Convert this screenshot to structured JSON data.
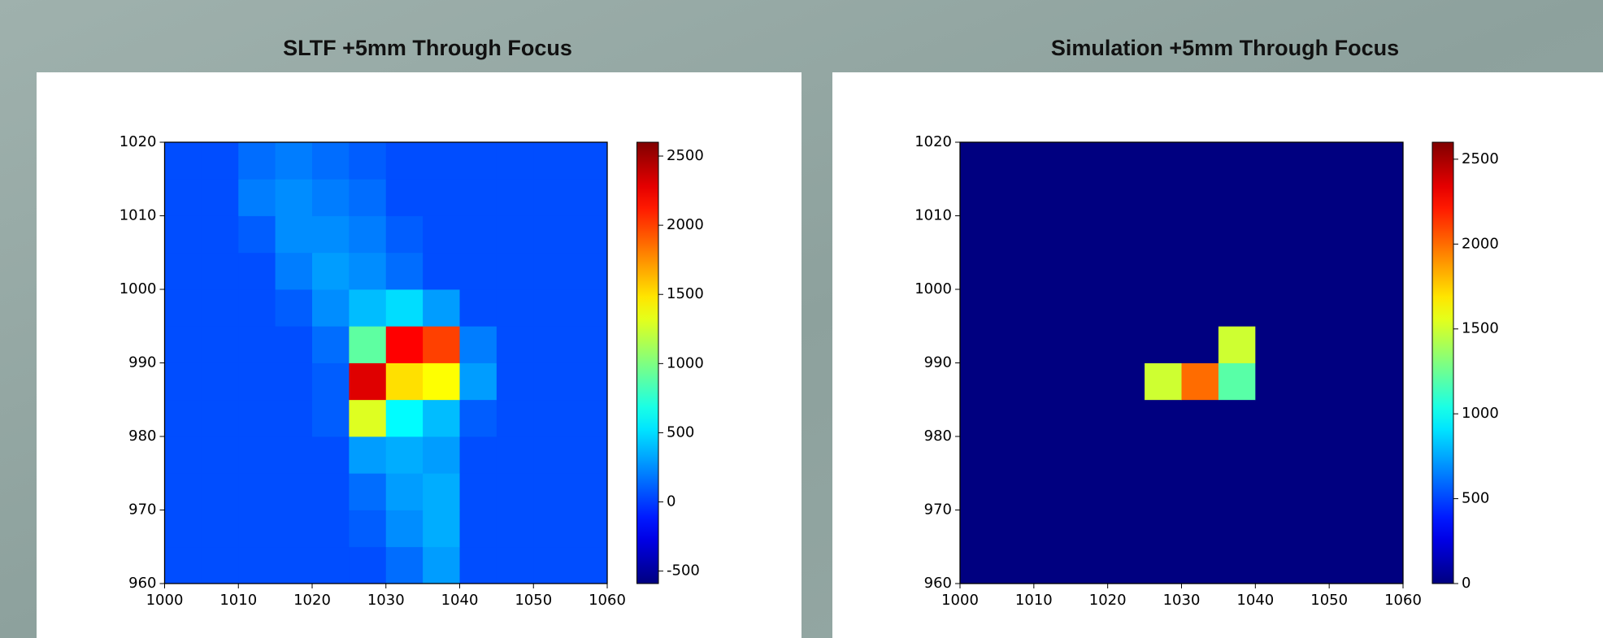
{
  "chart_data": [
    {
      "type": "heatmap",
      "title": "SLTF +5mm Through Focus",
      "colormap": "jet",
      "xbins": [
        1000,
        1005,
        1010,
        1015,
        1020,
        1025,
        1030,
        1035,
        1040,
        1045,
        1050,
        1055,
        1060
      ],
      "ybins": [
        960,
        965,
        970,
        975,
        980,
        985,
        990,
        995,
        1000,
        1005,
        1010,
        1015,
        1020
      ],
      "z": [
        [
          50,
          50,
          50,
          50,
          50,
          50,
          150,
          300,
          50,
          50,
          50,
          50
        ],
        [
          50,
          50,
          50,
          50,
          50,
          100,
          250,
          350,
          50,
          50,
          50,
          50
        ],
        [
          50,
          50,
          50,
          50,
          50,
          150,
          300,
          350,
          50,
          50,
          50,
          50
        ],
        [
          50,
          50,
          50,
          50,
          50,
          300,
          350,
          300,
          50,
          50,
          50,
          50
        ],
        [
          50,
          50,
          50,
          50,
          100,
          1300,
          600,
          400,
          100,
          50,
          50,
          50
        ],
        [
          50,
          50,
          50,
          50,
          100,
          2300,
          1500,
          1400,
          300,
          50,
          50,
          50
        ],
        [
          50,
          50,
          50,
          50,
          150,
          900,
          2200,
          2000,
          200,
          50,
          50,
          50
        ],
        [
          50,
          50,
          50,
          100,
          250,
          400,
          500,
          300,
          50,
          50,
          50,
          50
        ],
        [
          50,
          50,
          50,
          200,
          300,
          250,
          150,
          50,
          50,
          50,
          50,
          50
        ],
        [
          50,
          50,
          100,
          250,
          250,
          200,
          100,
          50,
          50,
          50,
          50,
          50
        ],
        [
          50,
          50,
          200,
          250,
          200,
          150,
          50,
          50,
          50,
          50,
          50,
          50
        ],
        [
          50,
          50,
          150,
          200,
          150,
          100,
          50,
          50,
          50,
          50,
          50,
          50
        ]
      ],
      "xlim": [
        1000,
        1060
      ],
      "xticks": [
        1000,
        1010,
        1020,
        1030,
        1040,
        1050,
        1060
      ],
      "ylim": [
        960,
        1020
      ],
      "yticks": [
        960,
        970,
        980,
        990,
        1000,
        1010,
        1020
      ],
      "clim": [
        -590,
        2600
      ],
      "cticks": [
        -500,
        0,
        500,
        1000,
        1500,
        2000,
        2500
      ]
    },
    {
      "type": "heatmap",
      "title": "Simulation +5mm Through Focus",
      "colormap": "jet",
      "xbins": [
        1000,
        1005,
        1010,
        1015,
        1020,
        1025,
        1030,
        1035,
        1040,
        1045,
        1050,
        1055,
        1060
      ],
      "ybins": [
        960,
        965,
        970,
        975,
        980,
        985,
        990,
        995,
        1000,
        1005,
        1010,
        1015,
        1020
      ],
      "z": [
        [
          0,
          0,
          0,
          0,
          0,
          0,
          0,
          0,
          0,
          0,
          0,
          0
        ],
        [
          0,
          0,
          0,
          0,
          0,
          0,
          0,
          0,
          0,
          0,
          0,
          0
        ],
        [
          0,
          0,
          0,
          0,
          0,
          0,
          0,
          0,
          0,
          0,
          0,
          0
        ],
        [
          0,
          0,
          0,
          0,
          0,
          0,
          0,
          0,
          0,
          0,
          0,
          0
        ],
        [
          0,
          0,
          0,
          0,
          0,
          0,
          0,
          0,
          0,
          0,
          0,
          0
        ],
        [
          0,
          0,
          0,
          0,
          0,
          1500,
          2000,
          1200,
          0,
          0,
          0,
          0
        ],
        [
          0,
          0,
          0,
          0,
          0,
          0,
          0,
          1500,
          0,
          0,
          0,
          0
        ],
        [
          0,
          0,
          0,
          0,
          0,
          0,
          0,
          0,
          0,
          0,
          0,
          0
        ],
        [
          0,
          0,
          0,
          0,
          0,
          0,
          0,
          0,
          0,
          0,
          0,
          0
        ],
        [
          0,
          0,
          0,
          0,
          0,
          0,
          0,
          0,
          0,
          0,
          0,
          0
        ],
        [
          0,
          0,
          0,
          0,
          0,
          0,
          0,
          0,
          0,
          0,
          0,
          0
        ],
        [
          0,
          0,
          0,
          0,
          0,
          0,
          0,
          0,
          0,
          0,
          0,
          0
        ]
      ],
      "xlim": [
        1000,
        1060
      ],
      "xticks": [
        1000,
        1010,
        1020,
        1030,
        1040,
        1050,
        1060
      ],
      "ylim": [
        960,
        1020
      ],
      "yticks": [
        960,
        970,
        980,
        990,
        1000,
        1010,
        1020
      ],
      "clim": [
        0,
        2600
      ],
      "cticks": [
        0,
        500,
        1000,
        1500,
        2000,
        2500
      ]
    }
  ]
}
